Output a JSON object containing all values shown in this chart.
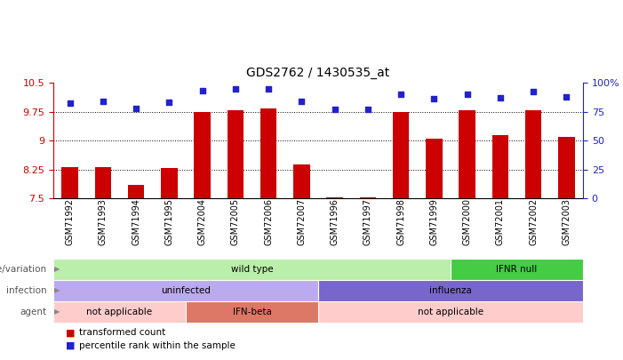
{
  "title": "GDS2762 / 1430535_at",
  "samples": [
    "GSM71992",
    "GSM71993",
    "GSM71994",
    "GSM71995",
    "GSM72004",
    "GSM72005",
    "GSM72006",
    "GSM72007",
    "GSM71996",
    "GSM71997",
    "GSM71998",
    "GSM71999",
    "GSM72000",
    "GSM72001",
    "GSM72002",
    "GSM72003"
  ],
  "bar_values": [
    8.3,
    8.3,
    7.85,
    8.28,
    9.75,
    9.78,
    9.82,
    8.37,
    7.52,
    7.53,
    9.75,
    9.05,
    9.78,
    9.15,
    9.78,
    9.1
  ],
  "percentile_values": [
    82,
    84,
    78,
    83,
    93,
    95,
    95,
    84,
    77,
    77,
    90,
    86,
    90,
    87,
    92,
    88
  ],
  "ylim": [
    7.5,
    10.5
  ],
  "yticks": [
    7.5,
    8.25,
    9.0,
    9.75,
    10.5
  ],
  "ytick_labels": [
    "7.5",
    "8.25",
    "9",
    "9.75",
    "10.5"
  ],
  "right_yticks": [
    0,
    25,
    50,
    75,
    100
  ],
  "right_ytick_labels": [
    "0",
    "25",
    "50",
    "75",
    "100%"
  ],
  "bar_color": "#cc0000",
  "dot_color": "#2222cc",
  "genotype_row": {
    "label": "genotype/variation",
    "segments": [
      {
        "text": "wild type",
        "start": 0,
        "end": 12,
        "color": "#bbeeaa"
      },
      {
        "text": "IFNR null",
        "start": 12,
        "end": 16,
        "color": "#44cc44"
      }
    ]
  },
  "infection_row": {
    "label": "infection",
    "segments": [
      {
        "text": "uninfected",
        "start": 0,
        "end": 8,
        "color": "#bbaaee"
      },
      {
        "text": "influenza",
        "start": 8,
        "end": 16,
        "color": "#7766cc"
      }
    ]
  },
  "agent_row": {
    "label": "agent",
    "segments": [
      {
        "text": "not applicable",
        "start": 0,
        "end": 4,
        "color": "#ffcccc"
      },
      {
        "text": "IFN-beta",
        "start": 4,
        "end": 8,
        "color": "#dd7766"
      },
      {
        "text": "not applicable",
        "start": 8,
        "end": 16,
        "color": "#ffcccc"
      }
    ]
  },
  "legend_items": [
    {
      "color": "#cc0000",
      "label": "transformed count"
    },
    {
      "color": "#2222cc",
      "label": "percentile rank within the sample"
    }
  ]
}
